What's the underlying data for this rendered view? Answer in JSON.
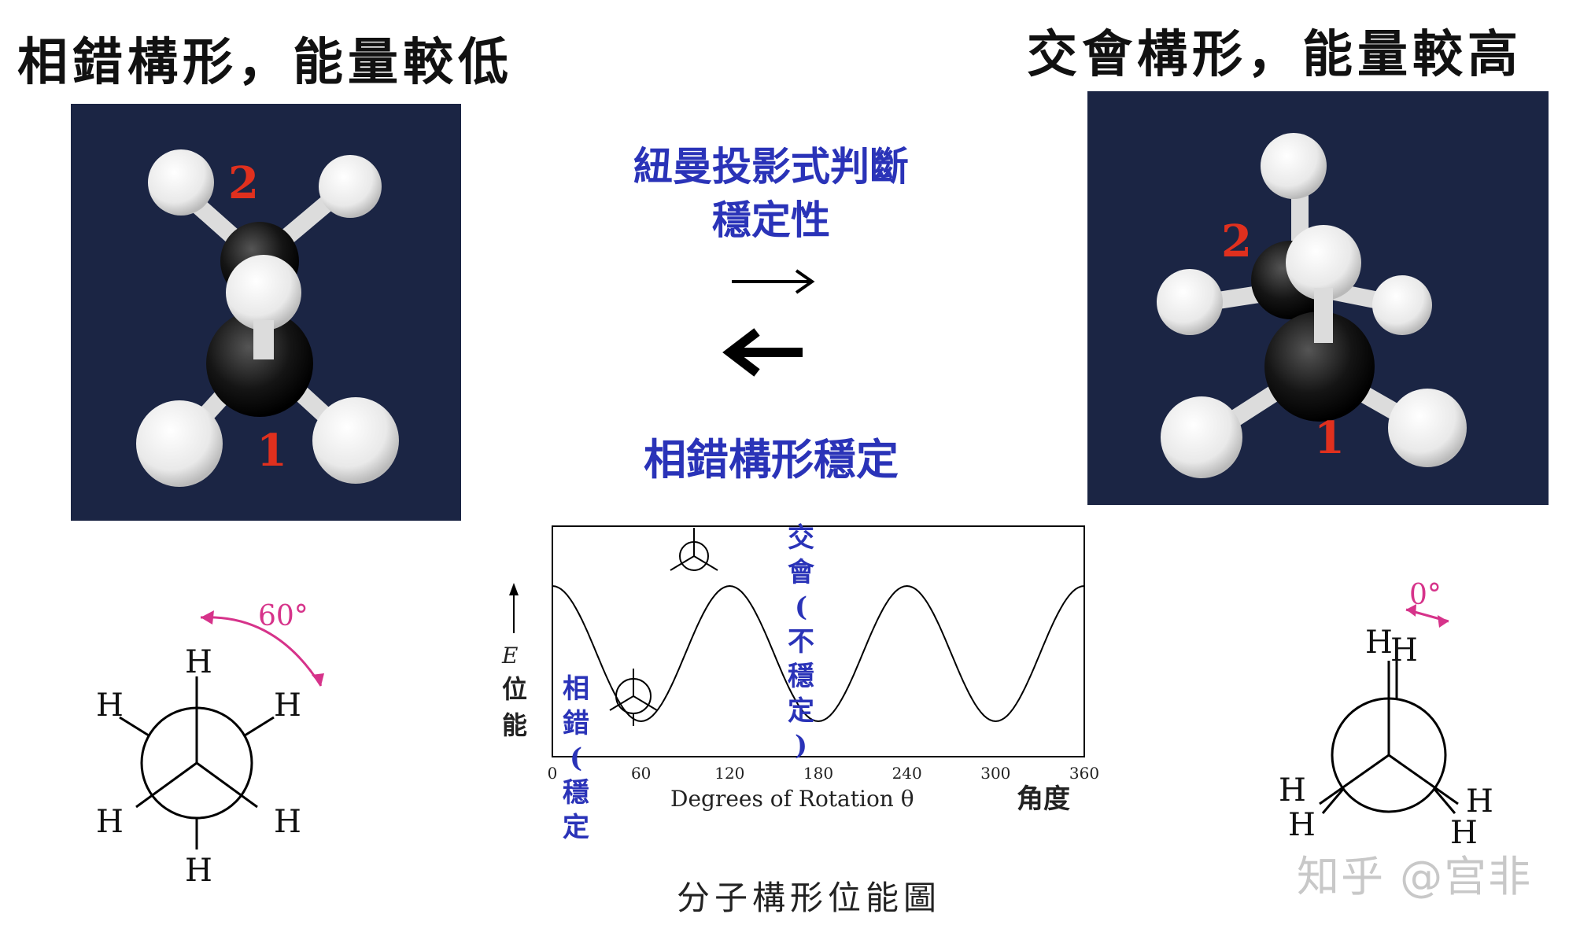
{
  "titles": {
    "left": "相錯構形，能量較低",
    "right": "交會構形，能量較高"
  },
  "center": {
    "newman_judge_line1": "紐曼投影式判斷",
    "newman_judge_line2": "穩定性",
    "staggered_stable": "相錯構形穩定"
  },
  "photos": {
    "left_label_top": "2",
    "left_label_bottom": "1",
    "right_label_top": "2",
    "right_label_bottom": "1"
  },
  "newman_left": {
    "angle": "60°",
    "atom": "H"
  },
  "newman_right": {
    "angle": "0°",
    "atom": "H"
  },
  "chart_data": {
    "type": "line",
    "xlabel": "Degrees of Rotation θ",
    "ylabel_symbol": "E",
    "ylabel_cn": "位能",
    "x_extra_label": "角度",
    "x_ticks": [
      0,
      60,
      120,
      180,
      240,
      300,
      360
    ],
    "xlim": [
      0,
      360
    ],
    "series": [
      {
        "x": [
          0,
          60,
          120,
          180,
          240,
          300,
          360
        ],
        "y": [
          1,
          0,
          1,
          0,
          1,
          0,
          1
        ]
      }
    ],
    "annotations": {
      "eclipsed": "交會(不穩定)",
      "staggered": "相錯(穩定)"
    },
    "caption": "分子構形位能圖"
  },
  "watermark": "知乎 @宫非",
  "colors": {
    "blue": "#2a33b8",
    "red": "#e0301e",
    "magenta": "#d6338a",
    "photo_bg": "#1b2544"
  }
}
